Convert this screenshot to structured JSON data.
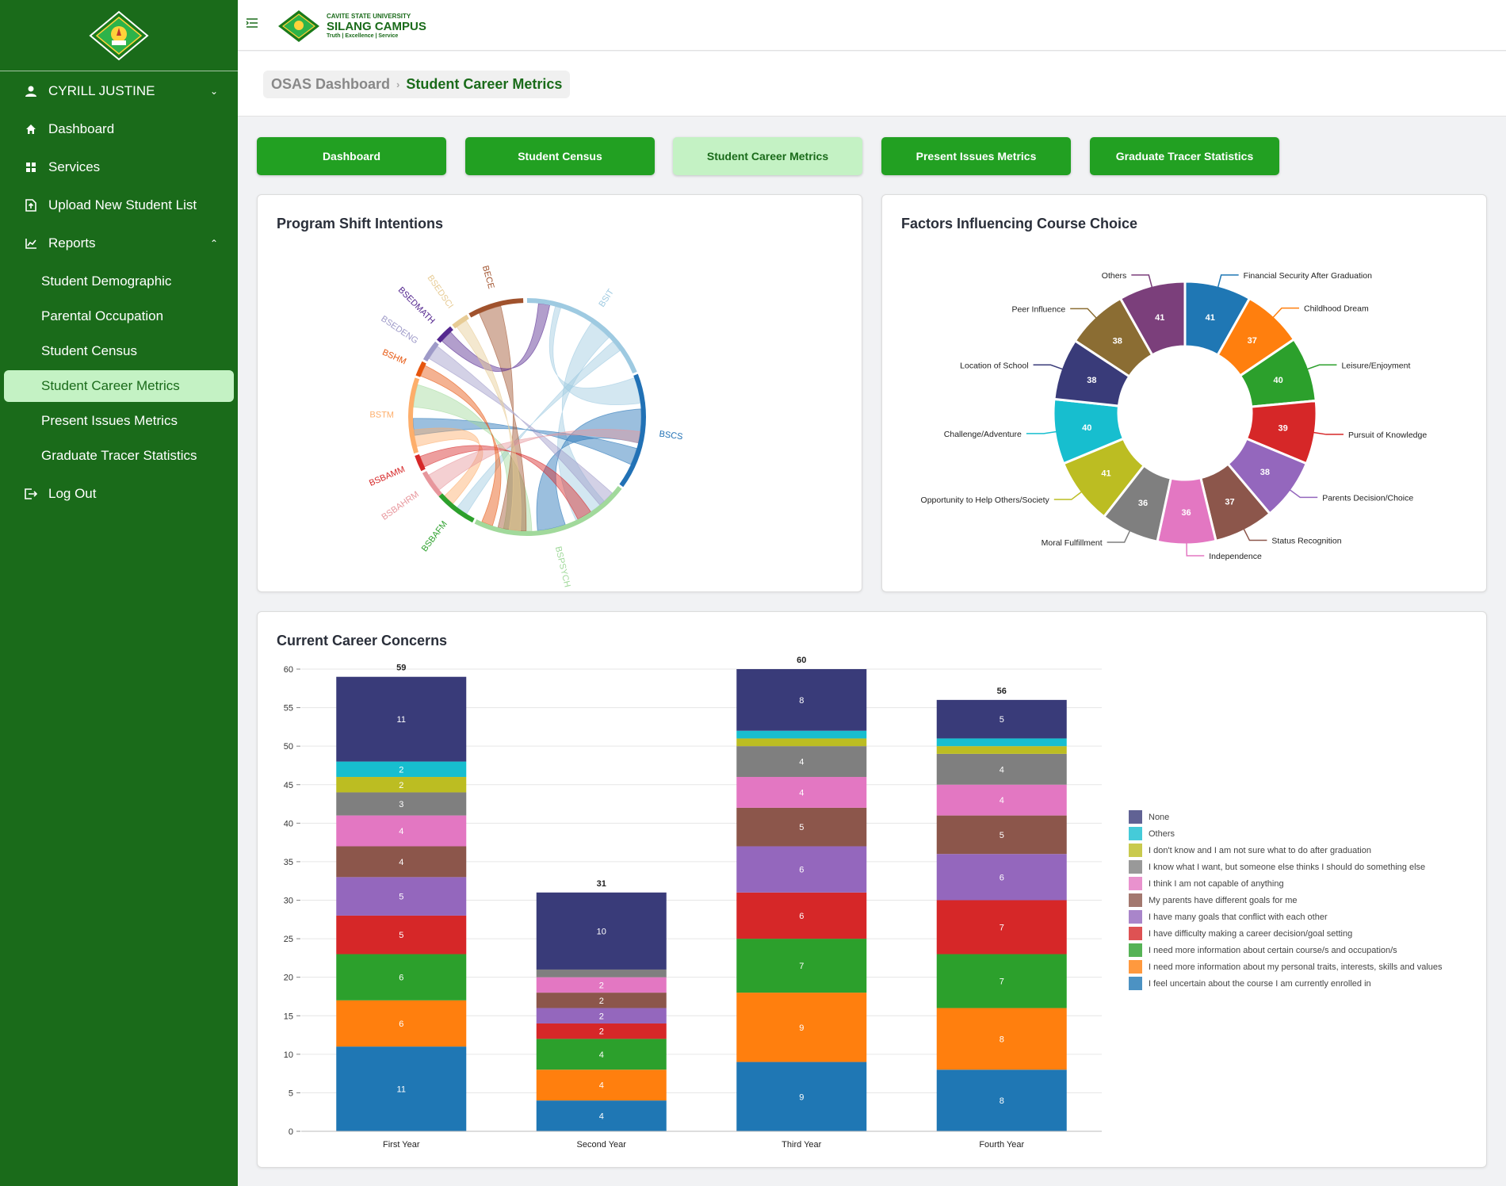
{
  "user": {
    "name": "CYRILL JUSTINE"
  },
  "nav": {
    "dashboard": "Dashboard",
    "services": "Services",
    "upload": "Upload New Student List",
    "reports": "Reports",
    "logout": "Log Out",
    "report_items": [
      "Student Demographic",
      "Parental Occupation",
      "Student Census",
      "Student Career Metrics",
      "Present Issues Metrics",
      "Graduate Tracer Statistics"
    ]
  },
  "brand": {
    "university": "CAVITE STATE UNIVERSITY",
    "campus": "SILANG CAMPUS",
    "tagline": "Truth | Excellence | Service"
  },
  "breadcrumb": {
    "parent": "OSAS Dashboard",
    "current": "Student Career Metrics"
  },
  "tabs": [
    "Dashboard",
    "Student Census",
    "Student Career Metrics",
    "Present Issues Metrics",
    "Graduate Tracer Statistics"
  ],
  "colors": {
    "sidebar": "#1a6b1a",
    "button": "#22a022",
    "active": "#c4f2c4"
  },
  "chord": {
    "title": "Program Shift Intentions",
    "groups": [
      {
        "name": "BSIT",
        "color": "#9ecae1"
      },
      {
        "name": "BSCS",
        "color": "#2171b5"
      },
      {
        "name": "BSPSYCH",
        "color": "#a1d99b"
      },
      {
        "name": "BSBAFM",
        "color": "#2ca02c"
      },
      {
        "name": "BSBAHRM",
        "color": "#e7969c"
      },
      {
        "name": "BSBAMM",
        "color": "#d62728"
      },
      {
        "name": "BSTM",
        "color": "#fdae6b"
      },
      {
        "name": "BSHM",
        "color": "#e6550d"
      },
      {
        "name": "BSEDENG",
        "color": "#9e9ac8"
      },
      {
        "name": "BSEDMATH",
        "color": "#54278f"
      },
      {
        "name": "BSEDSCI",
        "color": "#e7cb94"
      },
      {
        "name": "BECE",
        "color": "#a0522d"
      }
    ]
  },
  "donut": {
    "title": "Factors Influencing Course Choice",
    "slices": [
      {
        "label": "Financial Security After Graduation",
        "value": 41,
        "color": "#1f77b4"
      },
      {
        "label": "Childhood Dream",
        "value": 37,
        "color": "#ff7f0e"
      },
      {
        "label": "Leisure/Enjoyment",
        "value": 40,
        "color": "#2ca02c"
      },
      {
        "label": "Pursuit of Knowledge",
        "value": 39,
        "color": "#d62728"
      },
      {
        "label": "Parents Decision/Choice",
        "value": 38,
        "color": "#9467bd"
      },
      {
        "label": "Status Recognition",
        "value": 37,
        "color": "#8c564b"
      },
      {
        "label": "Independence",
        "value": 36,
        "color": "#e377c2"
      },
      {
        "label": "Moral Fulfillment",
        "value": 36,
        "color": "#7f7f7f"
      },
      {
        "label": "Opportunity to Help Others/Society",
        "value": 41,
        "color": "#bcbd22"
      },
      {
        "label": "Challenge/Adventure",
        "value": 40,
        "color": "#17becf"
      },
      {
        "label": "Location of School",
        "value": 38,
        "color": "#393b79"
      },
      {
        "label": "Peer Influence",
        "value": 38,
        "color": "#8b6d33"
      },
      {
        "label": "Others",
        "value": 41,
        "color": "#7b3f7b"
      }
    ]
  },
  "chart_data": {
    "type": "bar",
    "stacked": true,
    "title": "Current Career Concerns",
    "categories": [
      "First Year",
      "Second Year",
      "Third Year",
      "Fourth Year"
    ],
    "ylim": [
      0,
      60
    ],
    "yticks": [
      0,
      5,
      10,
      15,
      20,
      25,
      30,
      35,
      40,
      45,
      50,
      55,
      60
    ],
    "totals": [
      59,
      31,
      60,
      56
    ],
    "legend_position": "right",
    "series": [
      {
        "name": "I feel uncertain about the course I am currently enrolled in",
        "color": "#1f77b4",
        "values": [
          11,
          4,
          9,
          8
        ]
      },
      {
        "name": "I need more information about my personal traits, interests, skills and values",
        "color": "#ff7f0e",
        "values": [
          6,
          4,
          9,
          8
        ]
      },
      {
        "name": "I need more information about certain course/s and occupation/s",
        "color": "#2ca02c",
        "values": [
          6,
          4,
          7,
          7
        ]
      },
      {
        "name": "I have difficulty making a career decision/goal setting",
        "color": "#d62728",
        "values": [
          5,
          2,
          6,
          7
        ]
      },
      {
        "name": "I have many goals that conflict with each other",
        "color": "#9467bd",
        "values": [
          5,
          2,
          6,
          6
        ]
      },
      {
        "name": "My parents have different goals for me",
        "color": "#8c564b",
        "values": [
          4,
          2,
          5,
          5
        ]
      },
      {
        "name": "I think I am not capable of anything",
        "color": "#e377c2",
        "values": [
          4,
          2,
          4,
          4
        ]
      },
      {
        "name": "I know what I want, but someone else thinks I should do something else",
        "color": "#7f7f7f",
        "values": [
          3,
          1,
          4,
          4
        ]
      },
      {
        "name": "I don't know and I am not sure what to do after graduation",
        "color": "#bcbd22",
        "values": [
          2,
          0,
          1,
          1
        ]
      },
      {
        "name": "Others",
        "color": "#17becf",
        "values": [
          2,
          0,
          1,
          1
        ]
      },
      {
        "name": "None",
        "color": "#393b79",
        "values": [
          11,
          10,
          8,
          5
        ]
      }
    ]
  }
}
